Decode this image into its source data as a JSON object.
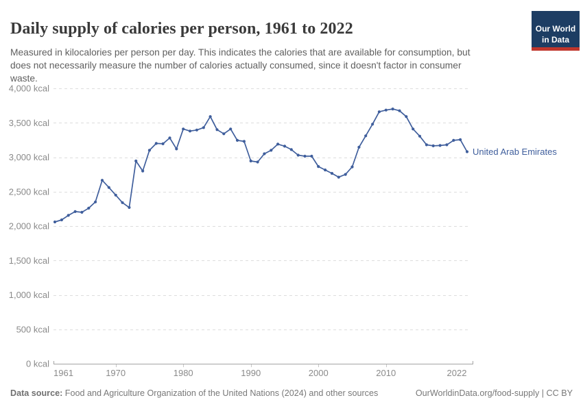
{
  "header": {
    "title": "Daily supply of calories per person, 1961 to 2022",
    "subtitle": "Measured in kilocalories per person per day. This indicates the calories that are available for consumption, but\ndoes not necessarily measure the number of calories actually consumed, since it doesn't factor in consumer\nwaste."
  },
  "logo": {
    "text": "Our World\nin Data",
    "bg_color": "#1d3d63",
    "bar_color": "#c0362c"
  },
  "chart_data": {
    "type": "line",
    "title": "Daily supply of calories per person, 1961 to 2022",
    "unit": "kcal",
    "xlabel": "",
    "ylabel": "",
    "xlim": [
      1961,
      2022
    ],
    "ylim": [
      0,
      4000
    ],
    "grid": "horizontal-dashed",
    "legend_position": "label-at-line-end",
    "xticks": [
      1961,
      1970,
      1980,
      1990,
      2000,
      2010,
      2022
    ],
    "yticks": [
      0,
      500,
      1000,
      1500,
      2000,
      2500,
      3000,
      3500,
      4000
    ],
    "ytick_labels": [
      "0 kcal",
      "500 kcal",
      "1,000 kcal",
      "1,500 kcal",
      "2,000 kcal",
      "2,500 kcal",
      "3,000 kcal",
      "3,500 kcal",
      "4,000 kcal"
    ],
    "x": [
      1961,
      1962,
      1963,
      1964,
      1965,
      1966,
      1967,
      1968,
      1969,
      1970,
      1971,
      1972,
      1973,
      1974,
      1975,
      1976,
      1977,
      1978,
      1979,
      1980,
      1981,
      1982,
      1983,
      1984,
      1985,
      1986,
      1987,
      1988,
      1989,
      1990,
      1991,
      1992,
      1993,
      1994,
      1995,
      1996,
      1997,
      1998,
      1999,
      2000,
      2001,
      2002,
      2003,
      2004,
      2005,
      2006,
      2007,
      2008,
      2009,
      2010,
      2011,
      2012,
      2013,
      2014,
      2015,
      2016,
      2017,
      2018,
      2019,
      2020,
      2021,
      2022
    ],
    "series": [
      {
        "name": "United Arab Emirates",
        "color": "#3f5e9c",
        "values": [
          2060,
          2090,
          2155,
          2210,
          2200,
          2260,
          2350,
          2665,
          2560,
          2450,
          2340,
          2270,
          2945,
          2800,
          3100,
          3200,
          3195,
          3280,
          3120,
          3410,
          3380,
          3395,
          3430,
          3590,
          3400,
          3340,
          3410,
          3245,
          3230,
          2945,
          2930,
          3050,
          3100,
          3190,
          3160,
          3110,
          3030,
          3015,
          3015,
          2865,
          2815,
          2765,
          2710,
          2750,
          2860,
          3145,
          3310,
          3480,
          3660,
          3685,
          3700,
          3675,
          3590,
          3410,
          3305,
          3180,
          3165,
          3170,
          3180,
          3245,
          3255,
          3080
        ]
      }
    ],
    "axis_color": "#a3a3a3",
    "gridline_color": "#dddddd",
    "tick_label_color": "#8a8a8a"
  },
  "footer": {
    "source_label": "Data source:",
    "source_rest": " Food and Agriculture Organization of the United Nations (2024) and other sources",
    "credit": "OurWorldinData.org/food-supply | CC BY"
  }
}
